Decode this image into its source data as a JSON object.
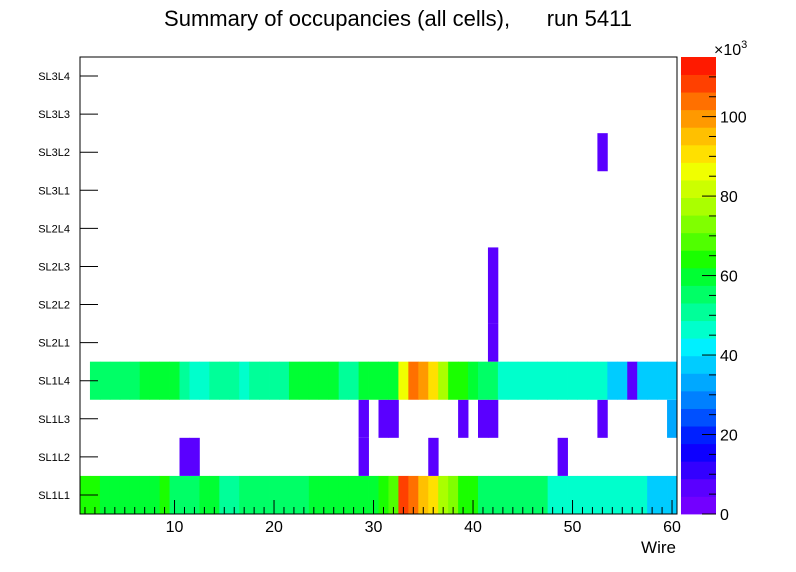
{
  "chart_data": {
    "type": "heatmap",
    "title": "Summary of occupancies (all cells),      run 5411",
    "xlabel": "Wire",
    "ylabel": "",
    "xlim": [
      0.5,
      60.5
    ],
    "x_ticks": [
      10,
      20,
      30,
      40,
      50,
      60
    ],
    "layers": [
      "SL1L1",
      "SL1L2",
      "SL1L3",
      "SL1L4",
      "SL2L1",
      "SL2L2",
      "SL2L3",
      "SL2L4",
      "SL3L1",
      "SL3L2",
      "SL3L3",
      "SL3L4"
    ],
    "colorbar": {
      "min": 0,
      "max": 115000,
      "ticks": [
        0,
        20,
        40,
        60,
        80,
        100
      ],
      "exponent_label": "×10",
      "exponent_power": "3"
    },
    "palette": [
      "#7300ff",
      "#5a00ff",
      "#3300ff",
      "#0d00ff",
      "#0020ff",
      "#0050ff",
      "#0080ff",
      "#00a8ff",
      "#00ccff",
      "#00f0ff",
      "#00ffcc",
      "#00ff99",
      "#00ff66",
      "#00ff33",
      "#1aff00",
      "#50ff00",
      "#80ff00",
      "#aaff00",
      "#ccff00",
      "#f0ff00",
      "#ffe000",
      "#ffc000",
      "#ff9900",
      "#ff7000",
      "#ff4000",
      "#ff1a00"
    ],
    "cells": [
      {
        "layer": "SL1L1",
        "values": [
          62000,
          62000,
          58000,
          58000,
          58000,
          60000,
          58000,
          60000,
          63000,
          55000,
          55000,
          55000,
          58000,
          58000,
          52000,
          52000,
          55000,
          55000,
          55000,
          55000,
          55000,
          55000,
          55000,
          60000,
          58000,
          58000,
          58000,
          58000,
          58000,
          58000,
          62000,
          68000,
          110000,
          105000,
          95000,
          90000,
          78000,
          74000,
          66000,
          62000,
          55000,
          55000,
          55000,
          55000,
          55000,
          55000,
          55000,
          45000,
          45000,
          45000,
          45000,
          45000,
          45000,
          45000,
          45000,
          45000,
          45000,
          37000,
          37000,
          37000
        ]
      },
      {
        "layer": "SL1L2",
        "values": [
          0,
          0,
          0,
          0,
          0,
          0,
          0,
          0,
          0,
          0,
          5000,
          5000,
          0,
          0,
          0,
          0,
          0,
          0,
          0,
          0,
          0,
          0,
          0,
          0,
          0,
          0,
          0,
          0,
          5000,
          0,
          0,
          0,
          0,
          0,
          0,
          5000,
          0,
          0,
          0,
          0,
          0,
          0,
          0,
          0,
          0,
          0,
          0,
          0,
          5000,
          0,
          0,
          0,
          0,
          0,
          0,
          0,
          0,
          0,
          0,
          0
        ]
      },
      {
        "layer": "SL1L3",
        "values": [
          0,
          0,
          0,
          0,
          0,
          0,
          0,
          0,
          0,
          0,
          0,
          0,
          0,
          0,
          0,
          0,
          0,
          0,
          0,
          0,
          0,
          0,
          0,
          0,
          0,
          0,
          0,
          0,
          5000,
          0,
          5000,
          5000,
          0,
          0,
          0,
          0,
          0,
          0,
          5000,
          0,
          5000,
          5000,
          0,
          0,
          0,
          0,
          0,
          0,
          0,
          0,
          0,
          0,
          5000,
          0,
          0,
          0,
          0,
          0,
          0,
          33000
        ]
      },
      {
        "layer": "SL1L4",
        "values": [
          0,
          57000,
          57000,
          57000,
          57000,
          54000,
          58000,
          58000,
          58000,
          58000,
          52000,
          48000,
          48000,
          52000,
          52000,
          52000,
          48000,
          52000,
          52000,
          52000,
          52000,
          58000,
          58000,
          58000,
          58000,
          58000,
          52000,
          52000,
          58000,
          58000,
          58000,
          58000,
          88000,
          105000,
          100000,
          92000,
          78000,
          66000,
          62000,
          58000,
          55000,
          55000,
          45000,
          45000,
          45000,
          45000,
          45000,
          45000,
          45000,
          45000,
          45000,
          45000,
          45000,
          38000,
          38000,
          5000,
          38000,
          38000,
          38000,
          38000
        ]
      },
      {
        "layer": "SL2L1",
        "values": [
          0,
          0,
          0,
          0,
          0,
          0,
          0,
          0,
          0,
          0,
          0,
          0,
          0,
          0,
          0,
          0,
          0,
          0,
          0,
          0,
          0,
          0,
          0,
          0,
          0,
          0,
          0,
          0,
          0,
          0,
          0,
          0,
          0,
          0,
          0,
          0,
          0,
          0,
          0,
          0,
          0,
          5000,
          0,
          0,
          0,
          0,
          0,
          0,
          0,
          0,
          0,
          0,
          0,
          0,
          0,
          0,
          0,
          0,
          0,
          0
        ]
      },
      {
        "layer": "SL2L2",
        "values": [
          0,
          0,
          0,
          0,
          0,
          0,
          0,
          0,
          0,
          0,
          0,
          0,
          0,
          0,
          0,
          0,
          0,
          0,
          0,
          0,
          0,
          0,
          0,
          0,
          0,
          0,
          0,
          0,
          0,
          0,
          0,
          0,
          0,
          0,
          0,
          0,
          0,
          0,
          0,
          0,
          0,
          5000,
          0,
          0,
          0,
          0,
          0,
          0,
          0,
          0,
          0,
          0,
          0,
          0,
          0,
          0,
          0,
          0,
          0,
          0
        ]
      },
      {
        "layer": "SL2L3",
        "values": [
          0,
          0,
          0,
          0,
          0,
          0,
          0,
          0,
          0,
          0,
          0,
          0,
          0,
          0,
          0,
          0,
          0,
          0,
          0,
          0,
          0,
          0,
          0,
          0,
          0,
          0,
          0,
          0,
          0,
          0,
          0,
          0,
          0,
          0,
          0,
          0,
          0,
          0,
          0,
          0,
          0,
          5000,
          0,
          0,
          0,
          0,
          0,
          0,
          0,
          0,
          0,
          0,
          0,
          0,
          0,
          0,
          0,
          0,
          0,
          0
        ]
      },
      {
        "layer": "SL2L4",
        "values": [
          0,
          0,
          0,
          0,
          0,
          0,
          0,
          0,
          0,
          0,
          0,
          0,
          0,
          0,
          0,
          0,
          0,
          0,
          0,
          0,
          0,
          0,
          0,
          0,
          0,
          0,
          0,
          0,
          0,
          0,
          0,
          0,
          0,
          0,
          0,
          0,
          0,
          0,
          0,
          0,
          0,
          0,
          0,
          0,
          0,
          0,
          0,
          0,
          0,
          0,
          0,
          0,
          0,
          0,
          0,
          0,
          0,
          0,
          0,
          0
        ]
      },
      {
        "layer": "SL3L1",
        "values": [
          0,
          0,
          0,
          0,
          0,
          0,
          0,
          0,
          0,
          0,
          0,
          0,
          0,
          0,
          0,
          0,
          0,
          0,
          0,
          0,
          0,
          0,
          0,
          0,
          0,
          0,
          0,
          0,
          0,
          0,
          0,
          0,
          0,
          0,
          0,
          0,
          0,
          0,
          0,
          0,
          0,
          0,
          0,
          0,
          0,
          0,
          0,
          0,
          0,
          0,
          0,
          0,
          0,
          0,
          0,
          0,
          0,
          0,
          0,
          0
        ]
      },
      {
        "layer": "SL3L2",
        "values": [
          0,
          0,
          0,
          0,
          0,
          0,
          0,
          0,
          0,
          0,
          0,
          0,
          0,
          0,
          0,
          0,
          0,
          0,
          0,
          0,
          0,
          0,
          0,
          0,
          0,
          0,
          0,
          0,
          0,
          0,
          0,
          0,
          0,
          0,
          0,
          0,
          0,
          0,
          0,
          0,
          0,
          0,
          0,
          0,
          0,
          0,
          0,
          0,
          0,
          0,
          0,
          0,
          5000,
          0,
          0,
          0,
          0,
          0,
          0,
          0
        ]
      },
      {
        "layer": "SL3L3",
        "values": [
          0,
          0,
          0,
          0,
          0,
          0,
          0,
          0,
          0,
          0,
          0,
          0,
          0,
          0,
          0,
          0,
          0,
          0,
          0,
          0,
          0,
          0,
          0,
          0,
          0,
          0,
          0,
          0,
          0,
          0,
          0,
          0,
          0,
          0,
          0,
          0,
          0,
          0,
          0,
          0,
          0,
          0,
          0,
          0,
          0,
          0,
          0,
          0,
          0,
          0,
          0,
          0,
          0,
          0,
          0,
          0,
          0,
          0,
          0,
          0
        ]
      },
      {
        "layer": "SL3L4",
        "values": [
          0,
          0,
          0,
          0,
          0,
          0,
          0,
          0,
          0,
          0,
          0,
          0,
          0,
          0,
          0,
          0,
          0,
          0,
          0,
          0,
          0,
          0,
          0,
          0,
          0,
          0,
          0,
          0,
          0,
          0,
          0,
          0,
          0,
          0,
          0,
          0,
          0,
          0,
          0,
          0,
          0,
          0,
          0,
          0,
          0,
          0,
          0,
          0,
          0,
          0,
          0,
          0,
          0,
          0,
          0,
          0,
          0,
          0,
          0,
          0
        ]
      }
    ]
  }
}
